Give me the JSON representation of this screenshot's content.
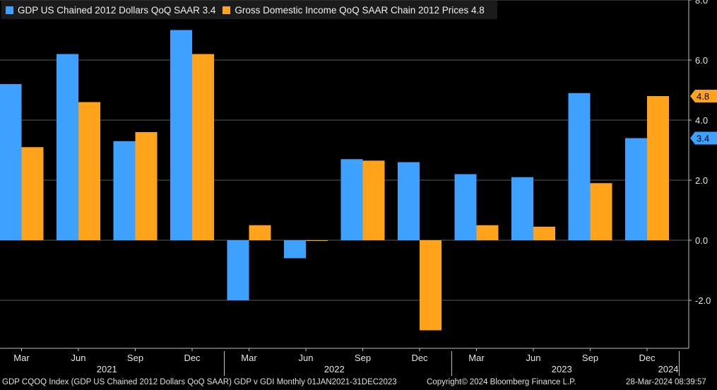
{
  "legend": [
    {
      "label": "GDP US Chained 2012 Dollars QoQ SAAR 3.4",
      "color": "#3ea1ff"
    },
    {
      "label": "Gross Domestic Income QoQ SAAR Chain 2012 Prices 4.8",
      "color": "#ffa31a"
    }
  ],
  "chart_data": {
    "type": "bar",
    "categories": [
      "Mar",
      "Jun",
      "Sep",
      "Dec",
      "Mar",
      "Jun",
      "Sep",
      "Dec",
      "Mar",
      "Jun",
      "Sep",
      "Dec"
    ],
    "years": [
      {
        "label": "2021",
        "start": 0,
        "end": 3
      },
      {
        "label": "2022",
        "start": 4,
        "end": 7
      },
      {
        "label": "2023",
        "start": 8,
        "end": 11
      },
      {
        "label": "2024",
        "start": 12,
        "end": 12
      }
    ],
    "series": [
      {
        "name": "GDP US Chained 2012 Dollars QoQ SAAR 3.4",
        "color": "#3ea1ff",
        "values": [
          5.2,
          6.2,
          3.3,
          7.0,
          -2.0,
          -0.6,
          2.7,
          2.6,
          2.2,
          2.1,
          4.9,
          3.4
        ]
      },
      {
        "name": "Gross Domestic Income QoQ SAAR Chain 2012 Prices 4.8",
        "color": "#ffa31a",
        "values": [
          3.1,
          4.6,
          3.6,
          6.2,
          0.5,
          0.0,
          2.65,
          -3.0,
          0.5,
          0.45,
          1.9,
          4.8
        ]
      }
    ],
    "ylim": [
      -3.6,
      8.0
    ],
    "yticks": [
      -2.0,
      0.0,
      2.0,
      4.0,
      6.0,
      8.0
    ],
    "ytick_labels": [
      "-2.0",
      "0.0",
      "2.0",
      "4.0",
      "6.0",
      "8.0"
    ],
    "grid": true,
    "last_value_tags": [
      {
        "value": 4.8,
        "label": "4.8",
        "color": "#ffa31a"
      },
      {
        "value": 3.4,
        "label": "3.4",
        "color": "#3ea1ff"
      }
    ]
  },
  "footer": {
    "left": "GDP CQOQ Index (GDP US Chained 2012 Dollars QoQ SAAR) GDP v GDI  Monthly 01JAN2021-31DEC2023",
    "center": "Copyright© 2024 Bloomberg Finance L.P.",
    "right": "28-Mar-2024 08:39:57"
  }
}
